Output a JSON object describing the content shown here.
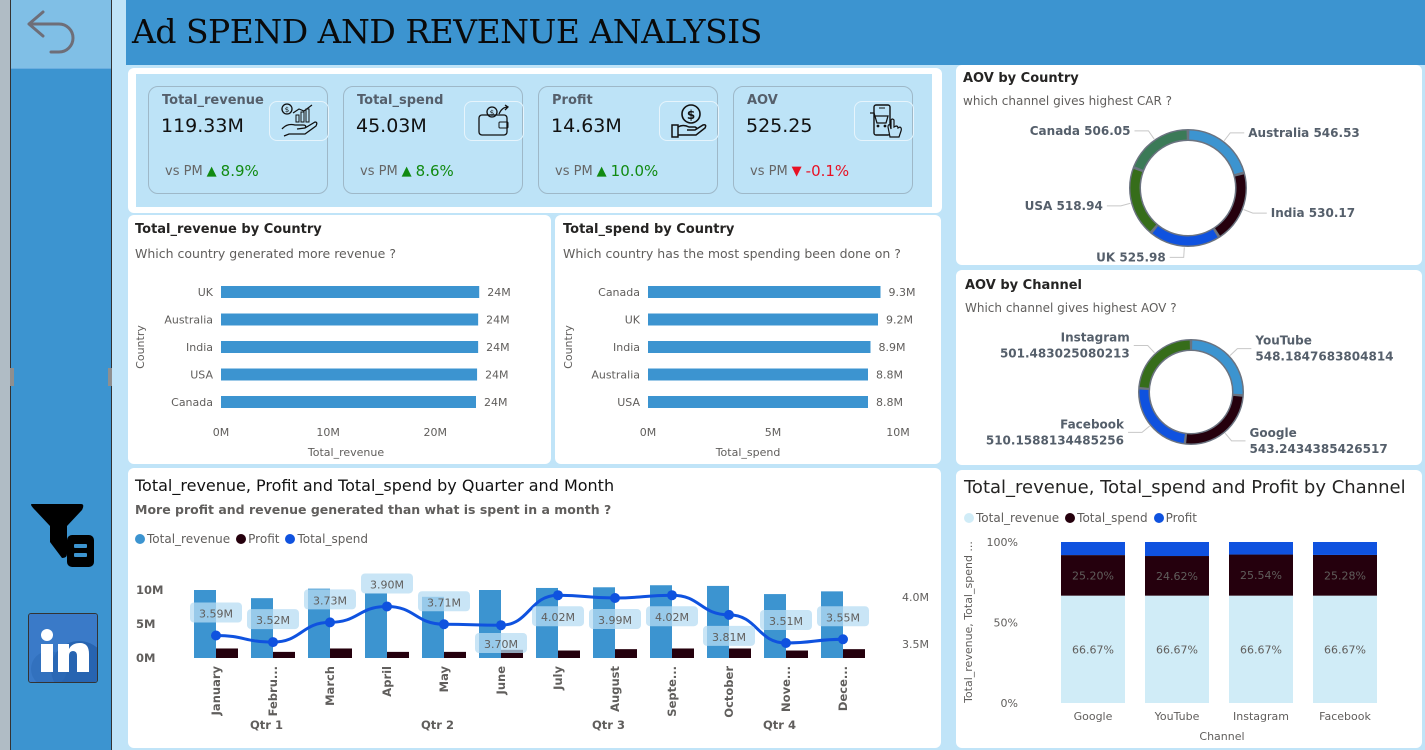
{
  "header": {
    "title": "Ad SPEND AND REVENUE ANALYSIS"
  },
  "nav": {
    "back_icon": "back-arrow-icon",
    "filter_icon": "filter-panel-icon",
    "linkedin_icon": "linkedin-icon"
  },
  "kpis": [
    {
      "label": "Total_revenue",
      "value": "119.33M",
      "vs_label": "vs PM",
      "delta": "8.9%",
      "direction": "up",
      "icon": "revenue-hand-chart-icon"
    },
    {
      "label": "Total_spend",
      "value": "45.03M",
      "vs_label": "vs PM",
      "delta": "8.6%",
      "direction": "up",
      "icon": "wallet-icon"
    },
    {
      "label": "Profit",
      "value": "14.63M",
      "vs_label": "vs PM",
      "delta": "10.0%",
      "direction": "up",
      "icon": "profit-coin-hand-icon"
    },
    {
      "label": "AOV",
      "value": "525.25",
      "vs_label": "vs PM",
      "delta": "-0.1%",
      "direction": "down",
      "icon": "mobile-cart-icon"
    }
  ],
  "colors": {
    "bar_blue": "#3c94d0",
    "profit_dark": "#25000d",
    "spend_line": "#0f52df",
    "revenue_light": "#d0ecf7",
    "up_green": "#118a11",
    "down_red": "#e81123",
    "green_dark": "#366d1a",
    "green_teal": "#3b7a57"
  },
  "chart_data": [
    {
      "id": "revenue_by_country",
      "type": "bar",
      "orientation": "horizontal",
      "title": "Total_revenue by Country",
      "subtitle": "Which country generated more revenue ?",
      "categories": [
        "UK",
        "Australia",
        "India",
        "USA",
        "Canada"
      ],
      "values": [
        24.1,
        24.0,
        24.0,
        23.9,
        23.8
      ],
      "data_labels": [
        "24M",
        "24M",
        "24M",
        "24M",
        "24M"
      ],
      "xlabel": "Total_revenue",
      "ylabel": "Country",
      "xticks": [
        "0M",
        "10M",
        "20M"
      ],
      "xtick_values": [
        0,
        10,
        20
      ],
      "xlim": [
        0,
        28
      ]
    },
    {
      "id": "spend_by_country",
      "type": "bar",
      "orientation": "horizontal",
      "title": "Total_spend by Country",
      "subtitle": "Which country has the most spending been done on ?",
      "categories": [
        "Canada",
        "UK",
        "India",
        "Australia",
        "USA"
      ],
      "values": [
        9.3,
        9.2,
        8.9,
        8.8,
        8.8
      ],
      "data_labels": [
        "9.3M",
        "9.2M",
        "8.9M",
        "8.8M",
        "8.8M"
      ],
      "xlabel": "Total_spend",
      "ylabel": "Country",
      "xticks": [
        "0M",
        "5M",
        "10M"
      ],
      "xtick_values": [
        0,
        5,
        10
      ],
      "xlim": [
        0,
        10
      ]
    },
    {
      "id": "aov_by_country",
      "type": "pie",
      "variant": "donut",
      "title": "AOV by Country",
      "subtitle": "which channel gives highest CAR ?",
      "slices": [
        {
          "label": "Australia",
          "value": 546.53,
          "display": "Australia 546.53",
          "color": "#3c94d0"
        },
        {
          "label": "India",
          "value": 530.17,
          "display": "India 530.17",
          "color": "#25000d"
        },
        {
          "label": "UK",
          "value": 525.98,
          "display": "UK 525.98",
          "color": "#0f52df"
        },
        {
          "label": "USA",
          "value": 518.94,
          "display": "USA 518.94",
          "color": "#366d1a"
        },
        {
          "label": "Canada",
          "value": 506.05,
          "display": "Canada 506.05",
          "color": "#3b7a57"
        }
      ]
    },
    {
      "id": "aov_by_channel",
      "type": "pie",
      "variant": "donut",
      "title": "AOV by Channel",
      "subtitle": "Which channel gives highest AOV ?",
      "slices": [
        {
          "label": "YouTube",
          "value": 548.1847683804814,
          "display1": "YouTube",
          "display2": "548.1847683804814",
          "color": "#3c94d0"
        },
        {
          "label": "Google",
          "value": 543.2434385426517,
          "display1": "Google",
          "display2": "543.2434385426517",
          "color": "#25000d"
        },
        {
          "label": "Facebook",
          "value": 510.1588134485256,
          "display1": "Facebook",
          "display2": "510.1588134485256",
          "color": "#0f52df"
        },
        {
          "label": "Instagram",
          "value": 501.483025080213,
          "display1": "Instagram",
          "display2": "501.483025080213",
          "color": "#366d1a"
        }
      ]
    },
    {
      "id": "monthly_combo",
      "type": "bar",
      "variant": "combo-bar-line",
      "title": "Total_revenue, Profit and Total_spend by Quarter and Month",
      "subtitle": "More profit and revenue generated than what is spent in a month ?",
      "legend": [
        "Total_revenue",
        "Profit",
        "Total_spend"
      ],
      "legend_position": "top-left",
      "categories": [
        "January",
        "Febru...",
        "March",
        "April",
        "May",
        "June",
        "July",
        "August",
        "Septe...",
        "October",
        "Nove...",
        "Dece..."
      ],
      "quarters": [
        {
          "label": "Qtr 1",
          "span": 3
        },
        {
          "label": "Qtr 2",
          "span": 3
        },
        {
          "label": "Qtr 3",
          "span": 3
        },
        {
          "label": "Qtr 4",
          "span": 3
        }
      ],
      "series": [
        {
          "name": "Total_revenue",
          "axis": "left",
          "type": "bar",
          "values": [
            10.0,
            8.8,
            10.2,
            9.5,
            9.0,
            10.0,
            10.3,
            10.4,
            10.7,
            10.6,
            9.4,
            9.8
          ]
        },
        {
          "name": "Profit",
          "axis": "left",
          "type": "bar",
          "values": [
            1.4,
            0.9,
            1.4,
            0.9,
            0.9,
            1.2,
            1.1,
            1.3,
            1.4,
            1.4,
            1.1,
            1.3
          ]
        },
        {
          "name": "Total_spend",
          "axis": "right",
          "type": "line",
          "values": [
            3.59,
            3.52,
            3.73,
            3.9,
            3.71,
            3.7,
            4.02,
            3.99,
            4.02,
            3.81,
            3.51,
            3.55
          ],
          "data_labels": [
            "3.59M",
            "3.52M",
            "3.73M",
            "3.90M",
            "3.71M",
            "3.70M",
            "4.02M",
            "3.99M",
            "4.02M",
            "3.81M",
            "3.51M",
            "3.55M"
          ]
        }
      ],
      "yticks_left": [
        "0M",
        "5M",
        "10M"
      ],
      "ytick_left_values": [
        0,
        5,
        10
      ],
      "ylim_left": [
        0,
        14
      ],
      "yticks_right": [
        "3.5M",
        "4.0M"
      ],
      "ytick_right_values": [
        3.5,
        4.0
      ],
      "ylim_right": [
        3.35,
        4.15
      ],
      "grid": false
    },
    {
      "id": "channel_100pct",
      "type": "bar",
      "variant": "100%-stacked",
      "title": "Total_revenue, Total_spend and Profit by Channel",
      "legend": [
        "Total_revenue",
        "Total_spend",
        "Profit"
      ],
      "legend_position": "top-left",
      "categories": [
        "Google",
        "YouTube",
        "Instagram",
        "Facebook"
      ],
      "series": [
        {
          "name": "Total_revenue",
          "values": [
            66.67,
            66.67,
            66.67,
            66.67
          ],
          "data_labels": [
            "66.67%",
            "66.67%",
            "66.67%",
            "66.67%"
          ]
        },
        {
          "name": "Total_spend",
          "values": [
            25.2,
            24.62,
            25.54,
            25.28
          ],
          "data_labels": [
            "25.20%",
            "24.62%",
            "25.54%",
            "25.28%"
          ]
        },
        {
          "name": "Profit",
          "values": [
            8.13,
            8.71,
            7.79,
            8.05
          ]
        }
      ],
      "xlabel": "Channel",
      "ylabel": "Total_revenue, Total_spend ...",
      "yticks": [
        "0%",
        "50%",
        "100%"
      ],
      "ylim": [
        0,
        100
      ],
      "grid": false
    }
  ]
}
